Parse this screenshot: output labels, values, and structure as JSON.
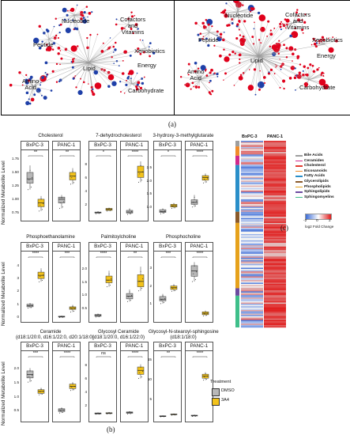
{
  "panel_a": {
    "left": {
      "labels": {
        "nucleotide": "Nucleotide",
        "cofactors": "Cofactors\nand\nVitamins",
        "peptide": "Peptide",
        "xenobiotics": "Xenobiotics",
        "energy": "Energy",
        "lipid": "Lipid",
        "amino_acid": "Amino\nAcid",
        "carbohydrate": "Carbohydrate"
      }
    },
    "right": {
      "labels": {
        "nucleotide": "Nucleotide",
        "cofactors": "Cofactors\nand\nVitamins",
        "peptide": "Peptide",
        "xenobiotics": "Xenobiotics",
        "energy": "Energy",
        "lipid": "Lipid",
        "amino_acid": "Amino\nAcid",
        "carbohydrate": "Carbohydrate"
      }
    },
    "caption": "(a)",
    "colors": {
      "up": "#e0001b",
      "down": "#1e3fa8",
      "edge": "#9a9a9a"
    }
  },
  "panel_b": {
    "caption": "(b)",
    "ylabel": "Normalized Metabolite Level",
    "facets": [
      "BxPC-3",
      "PANC-1"
    ],
    "colors": {
      "dmso": "#b8b8b8",
      "treat": "#f2c21b"
    },
    "legend": {
      "title": "Treatment",
      "items": [
        "DMSO",
        "3A4"
      ]
    },
    "chart_data": [
      {
        "type": "box",
        "title": "Cholesterol",
        "sig": [
          "**",
          "**"
        ],
        "ticks": [
          "1.75",
          "1.50",
          "1.25",
          "1.00",
          "0.75"
        ],
        "ylim": [
          0.65,
          1.8
        ],
        "groups": [
          {
            "facet": "BxPC-3",
            "DMSO": {
              "q1": 1.32,
              "med": 1.4,
              "q3": 1.52,
              "lo": 1.2,
              "hi": 1.65
            },
            "3A4": {
              "q1": 0.88,
              "med": 0.95,
              "q3": 1.02,
              "lo": 0.8,
              "hi": 1.08
            }
          },
          {
            "facet": "PANC-1",
            "DMSO": {
              "q1": 0.95,
              "med": 1.02,
              "q3": 1.06,
              "lo": 0.85,
              "hi": 1.1
            },
            "3A4": {
              "q1": 1.38,
              "med": 1.45,
              "q3": 1.52,
              "lo": 1.3,
              "hi": 1.6
            }
          }
        ]
      },
      {
        "type": "box",
        "title": "7-dehydrocholesterol",
        "sig": [
          "*",
          "****"
        ],
        "ticks": [
          "8",
          "6",
          "4",
          "2"
        ],
        "ylim": [
          0,
          9.2
        ],
        "groups": [
          {
            "facet": "BxPC-3",
            "DMSO": {
              "q1": 0.9,
              "med": 1.0,
              "q3": 1.05,
              "lo": 0.8,
              "hi": 1.15
            },
            "3A4": {
              "q1": 1.3,
              "med": 1.45,
              "q3": 1.6,
              "lo": 1.2,
              "hi": 1.7
            }
          },
          {
            "facet": "PANC-1",
            "DMSO": {
              "q1": 0.9,
              "med": 1.05,
              "q3": 1.3,
              "lo": 0.7,
              "hi": 1.6
            },
            "3A4": {
              "q1": 6.2,
              "med": 7.0,
              "q3": 7.9,
              "lo": 5.5,
              "hi": 8.6
            }
          }
        ]
      },
      {
        "type": "box",
        "title": "3-hydroxy-3-methylglutarate",
        "sig": [
          "*",
          "****"
        ],
        "ticks": [
          "2.5",
          "2.0",
          "1.5",
          "1.0"
        ],
        "ylim": [
          0.6,
          2.9
        ],
        "groups": [
          {
            "facet": "BxPC-3",
            "DMSO": {
              "q1": 0.85,
              "med": 0.88,
              "q3": 0.95,
              "lo": 0.8,
              "hi": 1.0
            },
            "3A4": {
              "q1": 1.05,
              "med": 1.1,
              "q3": 1.15,
              "lo": 1.0,
              "hi": 1.2
            }
          },
          {
            "facet": "PANC-1",
            "DMSO": {
              "q1": 1.15,
              "med": 1.22,
              "q3": 1.32,
              "lo": 1.05,
              "hi": 1.5
            },
            "3A4": {
              "q1": 2.05,
              "med": 2.15,
              "q3": 2.22,
              "lo": 1.95,
              "hi": 2.3
            }
          }
        ]
      },
      {
        "type": "box",
        "title": "Phosphoethanolamine",
        "sig": [
          "****",
          "***"
        ],
        "ticks": [
          "4",
          "3",
          "2",
          "1",
          "0"
        ],
        "ylim": [
          -0.2,
          4.6
        ],
        "groups": [
          {
            "facet": "BxPC-3",
            "DMSO": {
              "q1": 0.85,
              "med": 0.95,
              "q3": 1.05,
              "lo": 0.75,
              "hi": 1.15
            },
            "3A4": {
              "q1": 3.05,
              "med": 3.3,
              "q3": 3.55,
              "lo": 2.8,
              "hi": 3.85
            }
          },
          {
            "facet": "PANC-1",
            "DMSO": {
              "q1": 0.05,
              "med": 0.08,
              "q3": 0.12,
              "lo": 0.02,
              "hi": 0.15
            },
            "3A4": {
              "q1": 0.65,
              "med": 0.75,
              "q3": 0.85,
              "lo": 0.45,
              "hi": 1.0
            }
          }
        ]
      },
      {
        "type": "box",
        "title": "Palmitoylcholine",
        "sig": [
          "****",
          "**"
        ],
        "ticks": [
          "2.0",
          "1.5",
          "1.0",
          "0.5"
        ],
        "ylim": [
          0.1,
          2.4
        ],
        "groups": [
          {
            "facet": "BxPC-3",
            "DMSO": {
              "q1": 0.25,
              "med": 0.28,
              "q3": 0.32,
              "lo": 0.22,
              "hi": 0.35
            },
            "3A4": {
              "q1": 1.5,
              "med": 1.6,
              "q3": 1.75,
              "lo": 1.35,
              "hi": 1.95
            }
          },
          {
            "facet": "PANC-1",
            "DMSO": {
              "q1": 0.9,
              "med": 1.0,
              "q3": 1.1,
              "lo": 0.8,
              "hi": 1.25
            },
            "3A4": {
              "q1": 1.35,
              "med": 1.55,
              "q3": 1.8,
              "lo": 1.2,
              "hi": 2.1
            }
          }
        ]
      },
      {
        "type": "box",
        "title": "Phosphocholine",
        "sig": [
          "***",
          "****"
        ],
        "ticks": [
          "3",
          "2",
          "1"
        ],
        "ylim": [
          0.1,
          3.6
        ],
        "groups": [
          {
            "facet": "BxPC-3",
            "DMSO": {
              "q1": 1.2,
              "med": 1.3,
              "q3": 1.45,
              "lo": 1.05,
              "hi": 1.6
            },
            "3A4": {
              "q1": 1.85,
              "med": 1.95,
              "q3": 2.05,
              "lo": 1.75,
              "hi": 2.15
            }
          },
          {
            "facet": "PANC-1",
            "DMSO": {
              "q1": 2.6,
              "med": 2.9,
              "q3": 3.2,
              "lo": 2.3,
              "hi": 3.4
            },
            "3A4": {
              "q1": 0.42,
              "med": 0.5,
              "q3": 0.58,
              "lo": 0.35,
              "hi": 0.65
            }
          }
        ]
      },
      {
        "type": "box",
        "title": "Ceramide\n(d18:1/20:0, d16:1/22:0, d20:1/18:0)",
        "sig": [
          "***",
          "****"
        ],
        "ticks": [
          "2.0",
          "1.5",
          "1.0",
          "0.5"
        ],
        "ylim": [
          0.2,
          2.4
        ],
        "groups": [
          {
            "facet": "BxPC-3",
            "DMSO": {
              "q1": 1.7,
              "med": 1.82,
              "q3": 1.95,
              "lo": 1.55,
              "hi": 2.05
            },
            "3A4": {
              "q1": 1.15,
              "med": 1.22,
              "q3": 1.28,
              "lo": 1.1,
              "hi": 1.35
            }
          },
          {
            "facet": "PANC-1",
            "DMSO": {
              "q1": 0.5,
              "med": 0.55,
              "q3": 0.6,
              "lo": 0.45,
              "hi": 0.65
            },
            "3A4": {
              "q1": 1.32,
              "med": 1.4,
              "q3": 1.48,
              "lo": 1.25,
              "hi": 1.55
            }
          }
        ]
      },
      {
        "type": "box",
        "title": "Glycosyl Ceramide\n(d18:1/20:0, d16:1/22:0)",
        "sig": [
          "ns",
          "****"
        ],
        "ticks": [
          "8",
          "6",
          "4",
          "2"
        ],
        "ylim": [
          0,
          9.2
        ],
        "groups": [
          {
            "facet": "BxPC-3",
            "DMSO": {
              "q1": 0.9,
              "med": 1.0,
              "q3": 1.05,
              "lo": 0.85,
              "hi": 1.1
            },
            "3A4": {
              "q1": 0.95,
              "med": 1.02,
              "q3": 1.08,
              "lo": 0.9,
              "hi": 1.15
            }
          },
          {
            "facet": "PANC-1",
            "DMSO": {
              "q1": 1.0,
              "med": 1.1,
              "q3": 1.2,
              "lo": 0.9,
              "hi": 1.3
            },
            "3A4": {
              "q1": 6.8,
              "med": 7.4,
              "q3": 7.9,
              "lo": 6.2,
              "hi": 8.3
            }
          }
        ]
      },
      {
        "type": "box",
        "title": "Glycosyl-N-stearoyl-sphingosine\n(d18:1/18:0)",
        "sig": [
          "**",
          "****"
        ],
        "ticks": [
          "15",
          "10",
          "5"
        ],
        "ylim": [
          0,
          15.5
        ],
        "groups": [
          {
            "facet": "BxPC-3",
            "DMSO": {
              "q1": 0.85,
              "med": 0.95,
              "q3": 1.05,
              "lo": 0.8,
              "hi": 1.1
            },
            "3A4": {
              "q1": 1.3,
              "med": 1.4,
              "q3": 1.5,
              "lo": 1.2,
              "hi": 1.6
            }
          },
          {
            "facet": "PANC-1",
            "DMSO": {
              "q1": 1.0,
              "med": 1.1,
              "q3": 1.2,
              "lo": 0.9,
              "hi": 1.3
            },
            "3A4": {
              "q1": 10.5,
              "med": 11.0,
              "q3": 11.5,
              "lo": 10.0,
              "hi": 12.0
            }
          }
        ]
      }
    ]
  },
  "panel_c": {
    "caption": "(c)",
    "columns": [
      "BxPC-3",
      "PANC-1"
    ],
    "legend": [
      {
        "label": "Bile Acids",
        "color": "#9e9e9e"
      },
      {
        "label": "Ceramides",
        "color": "#d12a8c"
      },
      {
        "label": "Cholesterol",
        "color": "#e23b2e"
      },
      {
        "label": "Eicosanoids",
        "color": "#f08c2a"
      },
      {
        "label": "Fatty Acids",
        "color": "#2a8fc9"
      },
      {
        "label": "Glycerolipids",
        "color": "#8a5a2b"
      },
      {
        "label": "Phospholipids",
        "color": "#e6a21c"
      },
      {
        "label": "Sphingolipids",
        "color": "#6c4ba0"
      },
      {
        "label": "Sphingomyelins",
        "color": "#3fbf8a"
      }
    ],
    "scale": {
      "ticks": [
        "-2",
        "0",
        "2"
      ],
      "label": "log2 Fold Change",
      "colors": [
        "#3a6bd6",
        "#ffffff",
        "#e01b1b"
      ]
    }
  }
}
